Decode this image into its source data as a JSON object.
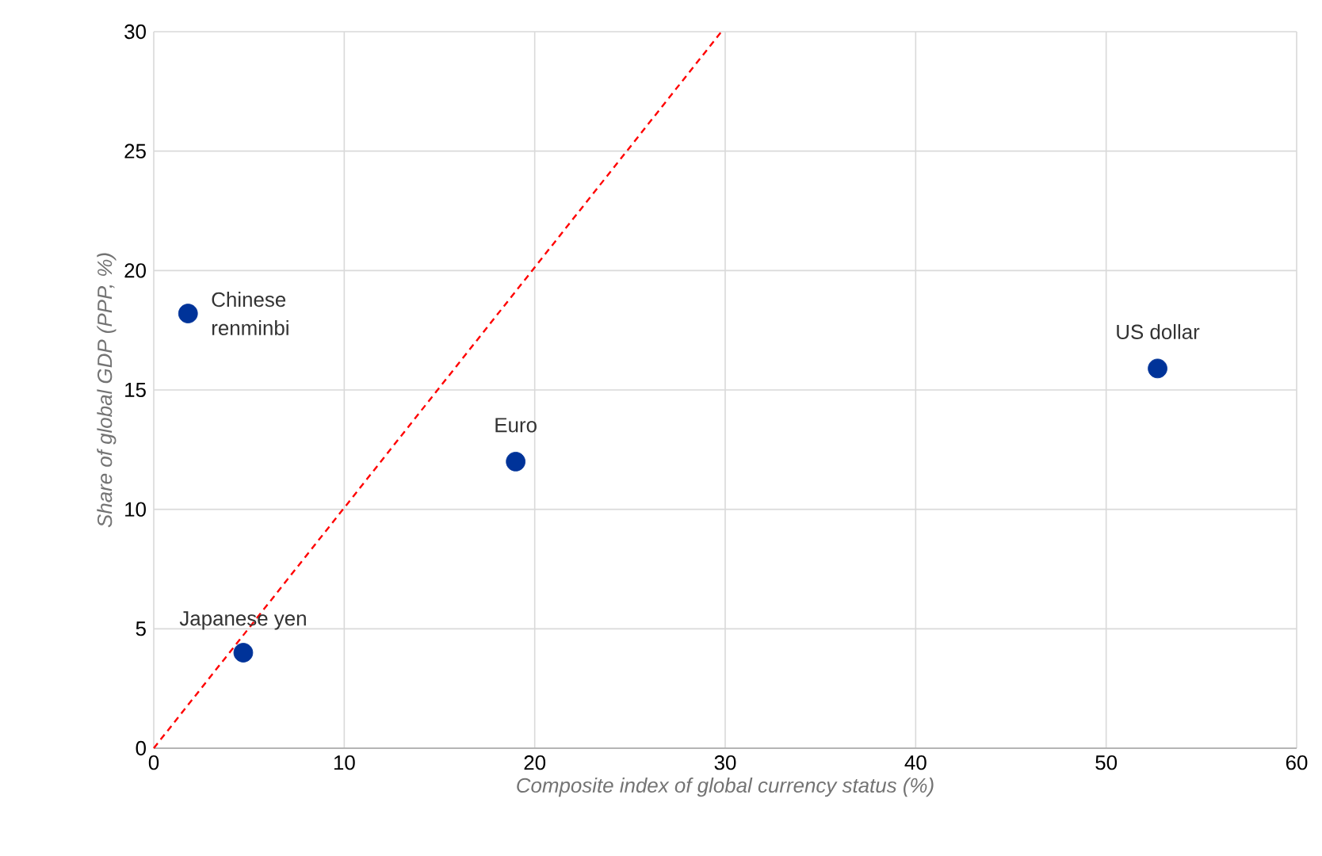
{
  "chart_data": {
    "type": "scatter",
    "xlabel": "Composite index of global currency status (%)",
    "ylabel": "Share of global GDP (PPP, %)",
    "xlim": [
      0,
      60
    ],
    "xticks": [
      0,
      10,
      20,
      30,
      40,
      50,
      60
    ],
    "ylim": [
      0,
      30
    ],
    "yticks": [
      0,
      5,
      10,
      15,
      20,
      25,
      30
    ],
    "grid": true,
    "series": [
      {
        "color": "#003399",
        "marker": "circle",
        "x": [
          1.8,
          4.7,
          19.0,
          52.7
        ],
        "values": [
          18.2,
          4.0,
          12.0,
          15.9
        ]
      },
      {
        "type": "line",
        "color": "#ff0000",
        "line_style": "dashed",
        "marker": "none",
        "x": [
          0,
          29.8
        ],
        "values": [
          0,
          30
        ]
      }
    ],
    "annotations": [
      {
        "text": "Chinese renminbi",
        "x": 1.8,
        "y": 18.2
      },
      {
        "text": "Japanese yen",
        "x": 4.7,
        "y": 4.0
      },
      {
        "text": "Euro",
        "x": 19.0,
        "y": 12.0
      },
      {
        "text": "US dollar",
        "x": 52.7,
        "y": 15.9
      }
    ]
  }
}
